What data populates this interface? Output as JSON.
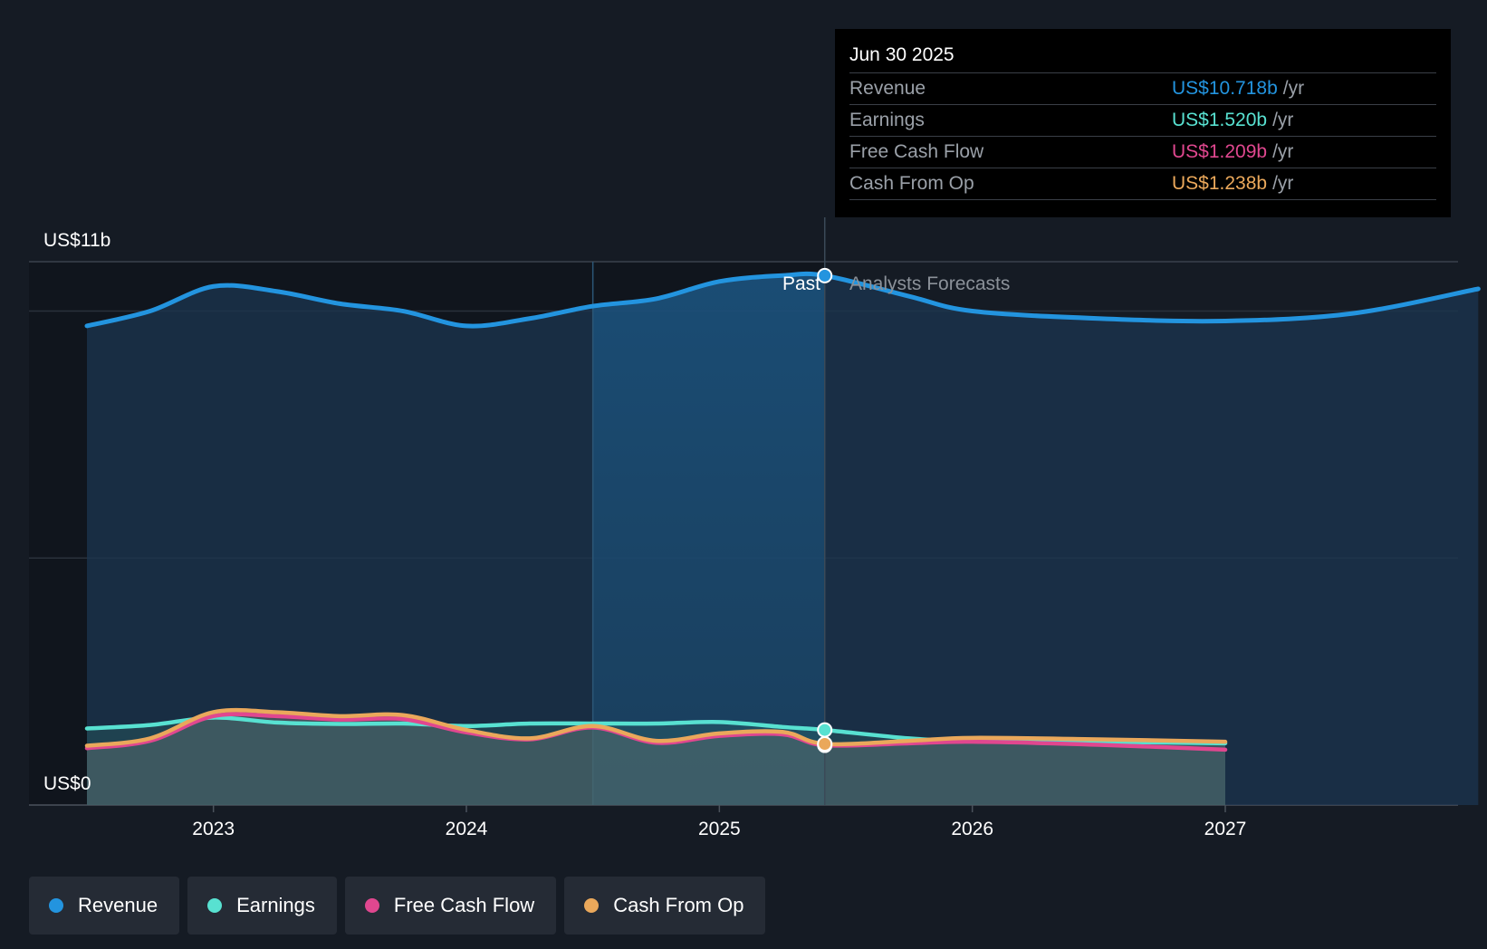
{
  "chart_data": {
    "type": "area",
    "y_axis": {
      "top_label": "US$11b",
      "bottom_label": "US$0",
      "ylim": [
        0,
        11
      ]
    },
    "x_axis": {
      "ticks": [
        "2023",
        "2024",
        "2025",
        "2026",
        "2027"
      ]
    },
    "divider": {
      "date": "Jun 30 2025",
      "past_label": "Past",
      "forecast_label": "Analysts Forecasts"
    },
    "series": [
      {
        "name": "Revenue",
        "color": "#2394df",
        "points": [
          [
            "2022-07",
            9.7
          ],
          [
            "2022-10",
            10.0
          ],
          [
            "2023-01",
            10.5
          ],
          [
            "2023-04",
            10.4
          ],
          [
            "2023-07",
            10.15
          ],
          [
            "2023-10",
            10.0
          ],
          [
            "2024-01",
            9.7
          ],
          [
            "2024-04",
            9.85
          ],
          [
            "2024-07",
            10.1
          ],
          [
            "2024-10",
            10.25
          ],
          [
            "2025-01",
            10.6
          ],
          [
            "2025-04",
            10.72
          ],
          [
            "2025-06",
            10.718
          ],
          [
            "2025-10",
            10.3
          ],
          [
            "2026-01",
            10.0
          ],
          [
            "2026-07",
            9.85
          ],
          [
            "2027-01",
            9.8
          ],
          [
            "2027-07",
            9.95
          ],
          [
            "2028-01",
            10.45
          ]
        ]
      },
      {
        "name": "Earnings",
        "color": "#58e1d1",
        "points": [
          [
            "2022-07",
            1.55
          ],
          [
            "2022-10",
            1.62
          ],
          [
            "2023-01",
            1.77
          ],
          [
            "2023-04",
            1.67
          ],
          [
            "2023-07",
            1.64
          ],
          [
            "2023-10",
            1.65
          ],
          [
            "2024-01",
            1.6
          ],
          [
            "2024-04",
            1.65
          ],
          [
            "2024-07",
            1.65
          ],
          [
            "2024-10",
            1.65
          ],
          [
            "2025-01",
            1.68
          ],
          [
            "2025-04",
            1.58
          ],
          [
            "2025-06",
            1.52
          ],
          [
            "2025-10",
            1.35
          ],
          [
            "2026-01",
            1.3
          ],
          [
            "2026-07",
            1.28
          ],
          [
            "2027-01",
            1.25
          ]
        ]
      },
      {
        "name": "Free Cash Flow",
        "color": "#e0478f",
        "points": [
          [
            "2022-07",
            1.15
          ],
          [
            "2022-10",
            1.3
          ],
          [
            "2023-01",
            1.8
          ],
          [
            "2023-04",
            1.8
          ],
          [
            "2023-07",
            1.73
          ],
          [
            "2023-10",
            1.74
          ],
          [
            "2024-01",
            1.47
          ],
          [
            "2024-04",
            1.33
          ],
          [
            "2024-07",
            1.57
          ],
          [
            "2024-10",
            1.26
          ],
          [
            "2025-01",
            1.4
          ],
          [
            "2025-04",
            1.43
          ],
          [
            "2025-06",
            1.209
          ],
          [
            "2025-10",
            1.25
          ],
          [
            "2026-01",
            1.28
          ],
          [
            "2026-07",
            1.22
          ],
          [
            "2027-01",
            1.12
          ]
        ]
      },
      {
        "name": "Cash From Op",
        "color": "#eaa85b",
        "points": [
          [
            "2022-07",
            1.2
          ],
          [
            "2022-10",
            1.35
          ],
          [
            "2023-01",
            1.88
          ],
          [
            "2023-04",
            1.88
          ],
          [
            "2023-07",
            1.8
          ],
          [
            "2023-10",
            1.82
          ],
          [
            "2024-01",
            1.52
          ],
          [
            "2024-04",
            1.35
          ],
          [
            "2024-07",
            1.6
          ],
          [
            "2024-10",
            1.3
          ],
          [
            "2025-01",
            1.45
          ],
          [
            "2025-04",
            1.48
          ],
          [
            "2025-06",
            1.238
          ],
          [
            "2025-10",
            1.3
          ],
          [
            "2026-01",
            1.36
          ],
          [
            "2026-07",
            1.33
          ],
          [
            "2027-01",
            1.28
          ]
        ]
      }
    ]
  },
  "tooltip": {
    "date": "Jun 30 2025",
    "rows": [
      {
        "label": "Revenue",
        "value": "US$10.718b",
        "unit": "/yr",
        "color": "#2394df"
      },
      {
        "label": "Earnings",
        "value": "US$1.520b",
        "unit": "/yr",
        "color": "#58e1d1"
      },
      {
        "label": "Free Cash Flow",
        "value": "US$1.209b",
        "unit": "/yr",
        "color": "#e0478f"
      },
      {
        "label": "Cash From Op",
        "value": "US$1.238b",
        "unit": "/yr",
        "color": "#eaa85b"
      }
    ]
  },
  "legend": [
    {
      "label": "Revenue",
      "color": "#2394df"
    },
    {
      "label": "Earnings",
      "color": "#58e1d1"
    },
    {
      "label": "Free Cash Flow",
      "color": "#e0478f"
    },
    {
      "label": "Cash From Op",
      "color": "#eaa85b"
    }
  ]
}
